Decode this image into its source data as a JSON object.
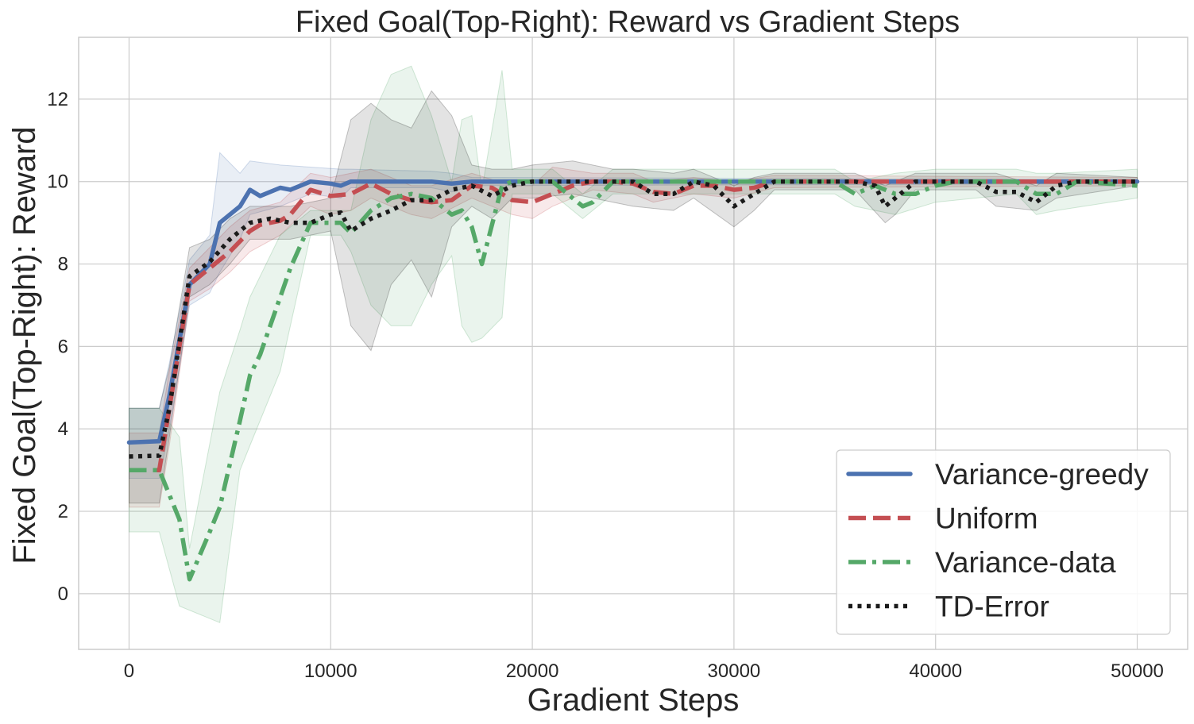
{
  "chart_data": {
    "type": "line",
    "title": "Fixed Goal(Top-Right): Reward vs Gradient Steps",
    "xlabel": "Gradient Steps",
    "ylabel": "Fixed Goal(Top-Right): Reward",
    "xlim": [
      -2500,
      52500
    ],
    "ylim": [
      -1.35,
      13.5
    ],
    "xticks": [
      0,
      10000,
      20000,
      30000,
      40000,
      50000
    ],
    "yticks": [
      0,
      2,
      4,
      6,
      8,
      10,
      12
    ],
    "grid": true,
    "legend_position": "lower-right",
    "series": [
      {
        "name": "Variance-greedy",
        "color": "#4c72b0",
        "style": "solid",
        "points": [
          [
            0,
            3.67
          ],
          [
            1500,
            3.7
          ],
          [
            2000,
            4.8
          ],
          [
            3000,
            7.5
          ],
          [
            4000,
            8.0
          ],
          [
            4500,
            9.0
          ],
          [
            5500,
            9.4
          ],
          [
            6000,
            9.8
          ],
          [
            6500,
            9.65
          ],
          [
            7500,
            9.85
          ],
          [
            8000,
            9.8
          ],
          [
            9000,
            10.0
          ],
          [
            10000,
            9.95
          ],
          [
            10500,
            9.9
          ],
          [
            11000,
            10.0
          ],
          [
            15000,
            10.0
          ],
          [
            16000,
            9.95
          ],
          [
            17000,
            10.0
          ],
          [
            50000,
            10.0
          ]
        ],
        "band": [
          [
            0,
            2.8,
            4.5
          ],
          [
            1500,
            2.8,
            4.5
          ],
          [
            2000,
            4.0,
            5.6
          ],
          [
            3000,
            7.0,
            8.1
          ],
          [
            4000,
            7.3,
            8.7
          ],
          [
            4500,
            7.8,
            10.7
          ],
          [
            5500,
            8.6,
            10.2
          ],
          [
            6000,
            9.2,
            10.5
          ],
          [
            7500,
            9.4,
            10.4
          ],
          [
            9000,
            9.7,
            10.35
          ],
          [
            10500,
            9.6,
            10.3
          ],
          [
            11000,
            9.85,
            10.3
          ],
          [
            15000,
            9.85,
            10.25
          ],
          [
            16000,
            9.75,
            10.2
          ],
          [
            17000,
            9.9,
            10.1
          ],
          [
            50000,
            9.95,
            10.05
          ]
        ]
      },
      {
        "name": "Uniform",
        "color": "#c44e52",
        "style": "dashed",
        "points": [
          [
            0,
            3.0
          ],
          [
            1500,
            3.0
          ],
          [
            2000,
            4.5
          ],
          [
            3000,
            7.5
          ],
          [
            4000,
            7.9
          ],
          [
            5000,
            8.3
          ],
          [
            6000,
            8.8
          ],
          [
            6500,
            8.95
          ],
          [
            7500,
            9.05
          ],
          [
            8000,
            9.2
          ],
          [
            9000,
            9.8
          ],
          [
            10000,
            9.65
          ],
          [
            11000,
            9.7
          ],
          [
            12000,
            9.95
          ],
          [
            13000,
            9.7
          ],
          [
            14000,
            9.55
          ],
          [
            15000,
            9.5
          ],
          [
            16000,
            9.55
          ],
          [
            17000,
            9.9
          ],
          [
            18000,
            9.85
          ],
          [
            19000,
            9.55
          ],
          [
            20000,
            9.5
          ],
          [
            21000,
            9.7
          ],
          [
            22000,
            9.9
          ],
          [
            23000,
            10.0
          ],
          [
            24000,
            10.0
          ],
          [
            25000,
            9.95
          ],
          [
            26000,
            9.75
          ],
          [
            27000,
            9.7
          ],
          [
            28000,
            9.9
          ],
          [
            29000,
            9.9
          ],
          [
            30000,
            9.8
          ],
          [
            31000,
            9.85
          ],
          [
            32000,
            10.0
          ],
          [
            50000,
            10.0
          ]
        ],
        "band": [
          [
            0,
            2.1,
            3.9
          ],
          [
            1500,
            2.1,
            3.9
          ],
          [
            2000,
            3.6,
            5.4
          ],
          [
            3000,
            7.1,
            7.9
          ],
          [
            4000,
            7.4,
            8.4
          ],
          [
            5000,
            7.8,
            8.9
          ],
          [
            6000,
            8.3,
            9.3
          ],
          [
            7500,
            8.7,
            9.5
          ],
          [
            9000,
            9.4,
            10.2
          ],
          [
            10000,
            9.2,
            10.1
          ],
          [
            11000,
            9.3,
            10.2
          ],
          [
            12000,
            9.6,
            10.3
          ],
          [
            14000,
            9.2,
            9.9
          ],
          [
            15000,
            9.1,
            9.9
          ],
          [
            17000,
            9.6,
            10.2
          ],
          [
            19000,
            9.2,
            9.9
          ],
          [
            20000,
            9.1,
            9.9
          ],
          [
            21000,
            9.4,
            10.35
          ],
          [
            23000,
            9.8,
            10.2
          ],
          [
            25000,
            9.7,
            10.2
          ],
          [
            26000,
            9.5,
            10.0
          ],
          [
            28000,
            9.7,
            10.1
          ],
          [
            30000,
            9.6,
            10.0
          ],
          [
            32000,
            9.85,
            10.15
          ],
          [
            50000,
            9.9,
            10.1
          ]
        ]
      },
      {
        "name": "Variance-data",
        "color": "#55a868",
        "style": "dashdot",
        "points": [
          [
            0,
            3.0
          ],
          [
            1500,
            3.0
          ],
          [
            2500,
            1.8
          ],
          [
            3000,
            0.35
          ],
          [
            4000,
            1.5
          ],
          [
            4500,
            2.1
          ],
          [
            5500,
            4.2
          ],
          [
            6000,
            5.3
          ],
          [
            6500,
            5.8
          ],
          [
            7500,
            7.2
          ],
          [
            8000,
            7.9
          ],
          [
            9000,
            9.0
          ],
          [
            10500,
            9.0
          ],
          [
            11000,
            8.75
          ],
          [
            12000,
            9.3
          ],
          [
            13000,
            9.6
          ],
          [
            14000,
            9.7
          ],
          [
            15000,
            9.6
          ],
          [
            16000,
            9.2
          ],
          [
            16500,
            9.3
          ],
          [
            17000,
            8.9
          ],
          [
            17500,
            8.0
          ],
          [
            18500,
            9.9
          ],
          [
            19000,
            10.0
          ],
          [
            21000,
            10.0
          ],
          [
            22000,
            9.6
          ],
          [
            22500,
            9.4
          ],
          [
            23000,
            9.5
          ],
          [
            24000,
            10.0
          ],
          [
            35000,
            10.0
          ],
          [
            36000,
            9.7
          ],
          [
            37000,
            9.9
          ],
          [
            38000,
            9.7
          ],
          [
            39000,
            9.7
          ],
          [
            40000,
            9.9
          ],
          [
            41000,
            10.0
          ],
          [
            44000,
            10.0
          ],
          [
            45000,
            9.7
          ],
          [
            46000,
            9.7
          ],
          [
            47000,
            10.0
          ],
          [
            50000,
            9.9
          ]
        ],
        "band": [
          [
            0,
            1.5,
            4.5
          ],
          [
            1500,
            1.5,
            4.5
          ],
          [
            2500,
            -0.3,
            3.8
          ],
          [
            3000,
            -0.4,
            1.1
          ],
          [
            4500,
            -0.7,
            4.9
          ],
          [
            5500,
            3.0,
            6.4
          ],
          [
            6000,
            3.6,
            7.2
          ],
          [
            7500,
            5.4,
            8.7
          ],
          [
            9000,
            8.7,
            9.3
          ],
          [
            10500,
            8.7,
            9.3
          ],
          [
            11000,
            8.3,
            9.3
          ],
          [
            12000,
            7.0,
            11.5
          ],
          [
            13000,
            6.5,
            12.6
          ],
          [
            14000,
            6.5,
            12.8
          ],
          [
            15000,
            7.5,
            11.6
          ],
          [
            16000,
            8.2,
            10.0
          ],
          [
            16500,
            6.5,
            11.5
          ],
          [
            17000,
            6.1,
            11.6
          ],
          [
            17500,
            6.2,
            9.8
          ],
          [
            18500,
            6.7,
            12.7
          ],
          [
            19000,
            9.7,
            10.3
          ],
          [
            21000,
            9.7,
            10.3
          ],
          [
            22500,
            9.1,
            9.7
          ],
          [
            24000,
            9.7,
            10.3
          ],
          [
            35000,
            9.7,
            10.3
          ],
          [
            36000,
            9.4,
            10.0
          ],
          [
            38000,
            9.2,
            10.2
          ],
          [
            40000,
            9.5,
            10.3
          ],
          [
            44000,
            9.7,
            10.3
          ],
          [
            45000,
            9.2,
            10.2
          ],
          [
            46000,
            9.3,
            10.2
          ],
          [
            50000,
            9.6,
            10.3
          ]
        ]
      },
      {
        "name": "TD-Error",
        "color": "#1a1a1a",
        "style": "dotted",
        "points": [
          [
            0,
            3.33
          ],
          [
            1500,
            3.35
          ],
          [
            2000,
            4.5
          ],
          [
            3000,
            7.7
          ],
          [
            4000,
            8.05
          ],
          [
            5000,
            8.6
          ],
          [
            6000,
            9.0
          ],
          [
            7000,
            9.1
          ],
          [
            8000,
            9.0
          ],
          [
            9000,
            9.0
          ],
          [
            10000,
            9.2
          ],
          [
            10500,
            9.25
          ],
          [
            11000,
            8.8
          ],
          [
            12000,
            9.1
          ],
          [
            13000,
            9.3
          ],
          [
            14000,
            9.55
          ],
          [
            15000,
            9.55
          ],
          [
            16000,
            9.8
          ],
          [
            17000,
            9.9
          ],
          [
            18000,
            9.65
          ],
          [
            19000,
            9.9
          ],
          [
            20000,
            10.0
          ],
          [
            25000,
            10.0
          ],
          [
            26000,
            9.7
          ],
          [
            27000,
            9.7
          ],
          [
            28000,
            10.0
          ],
          [
            29000,
            9.9
          ],
          [
            30000,
            9.4
          ],
          [
            31000,
            9.7
          ],
          [
            32000,
            10.0
          ],
          [
            36000,
            10.0
          ],
          [
            37000,
            9.9
          ],
          [
            37500,
            9.4
          ],
          [
            38000,
            9.6
          ],
          [
            39000,
            10.0
          ],
          [
            42000,
            10.0
          ],
          [
            43000,
            9.75
          ],
          [
            44000,
            9.75
          ],
          [
            45000,
            9.5
          ],
          [
            46000,
            9.9
          ],
          [
            47000,
            10.0
          ],
          [
            50000,
            10.0
          ]
        ],
        "band": [
          [
            0,
            2.2,
            4.5
          ],
          [
            1500,
            2.2,
            4.5
          ],
          [
            2000,
            3.8,
            5.5
          ],
          [
            3000,
            7.2,
            8.4
          ],
          [
            4000,
            7.5,
            8.6
          ],
          [
            5000,
            8.0,
            9.1
          ],
          [
            6000,
            8.6,
            9.4
          ],
          [
            8000,
            8.6,
            9.4
          ],
          [
            10000,
            8.8,
            9.6
          ],
          [
            11000,
            6.5,
            11.5
          ],
          [
            12000,
            5.9,
            11.9
          ],
          [
            13000,
            7.5,
            11.5
          ],
          [
            14000,
            8.1,
            11.3
          ],
          [
            15000,
            7.2,
            12.2
          ],
          [
            16000,
            8.9,
            11.6
          ],
          [
            17000,
            9.4,
            10.4
          ],
          [
            18000,
            9.1,
            10.3
          ],
          [
            19000,
            9.6,
            10.3
          ],
          [
            20000,
            9.6,
            10.4
          ],
          [
            22000,
            9.7,
            10.5
          ],
          [
            24000,
            9.5,
            10.3
          ],
          [
            25000,
            9.4,
            10.3
          ],
          [
            27000,
            9.3,
            10.2
          ],
          [
            28000,
            9.6,
            10.3
          ],
          [
            30000,
            8.9,
            9.9
          ],
          [
            31000,
            9.3,
            10.1
          ],
          [
            32000,
            9.8,
            10.2
          ],
          [
            36000,
            9.8,
            10.2
          ],
          [
            37500,
            9.0,
            9.9
          ],
          [
            38000,
            9.2,
            10.0
          ],
          [
            39000,
            9.8,
            10.2
          ],
          [
            42000,
            9.8,
            10.2
          ],
          [
            43000,
            9.4,
            10.2
          ],
          [
            45000,
            9.3,
            9.9
          ],
          [
            46000,
            9.6,
            10.2
          ],
          [
            50000,
            9.9,
            10.1
          ]
        ]
      }
    ]
  }
}
